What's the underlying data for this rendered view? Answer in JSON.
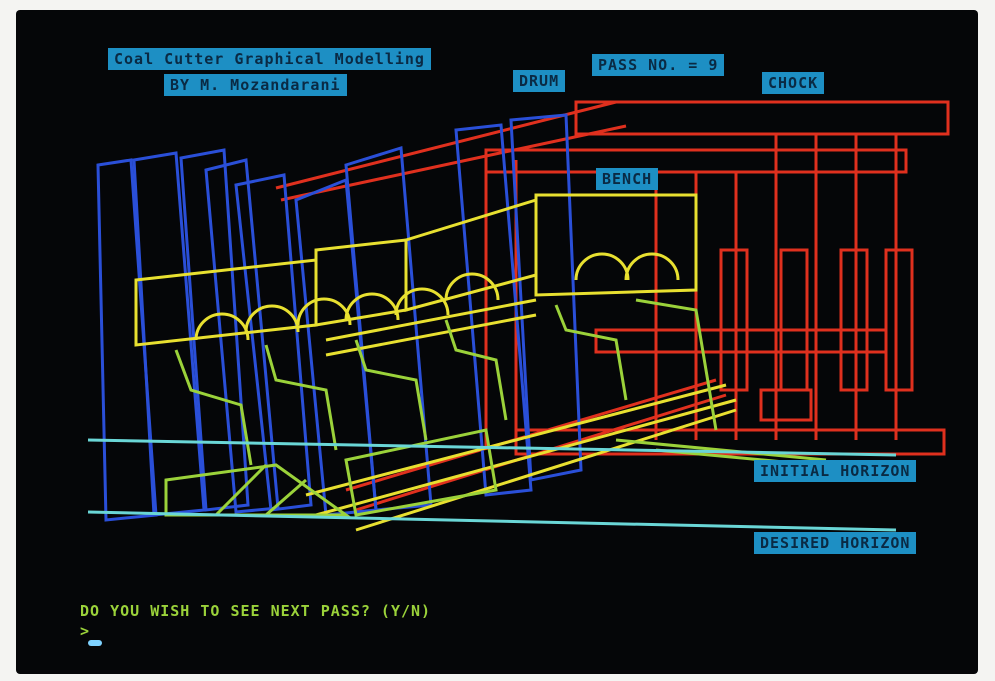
{
  "title_line1": "Coal Cutter Graphical Modelling",
  "title_line2": "BY M. Mozandarani",
  "pass_label": "PASS NO. = 9",
  "labels": {
    "drum": "DRUM",
    "chock": "CHOCK",
    "bench": "BENCH",
    "initial_horizon": "INITIAL HORIZON",
    "desired_horizon": "DESIRED HORIZON"
  },
  "prompt": {
    "question": "DO YOU WISH TO SEE NEXT PASS? (Y/N)",
    "input_marker": ">"
  },
  "colors": {
    "screen_background": "#050608",
    "label_background": "#1d8fc4",
    "drum_wireframe": "#e8e030",
    "chock_wireframe": "#e0301e",
    "panel_wireframe": "#2a4fd8",
    "conveyor_wireframe": "#9bd23a",
    "horizon_line": "#6ad6d6"
  }
}
